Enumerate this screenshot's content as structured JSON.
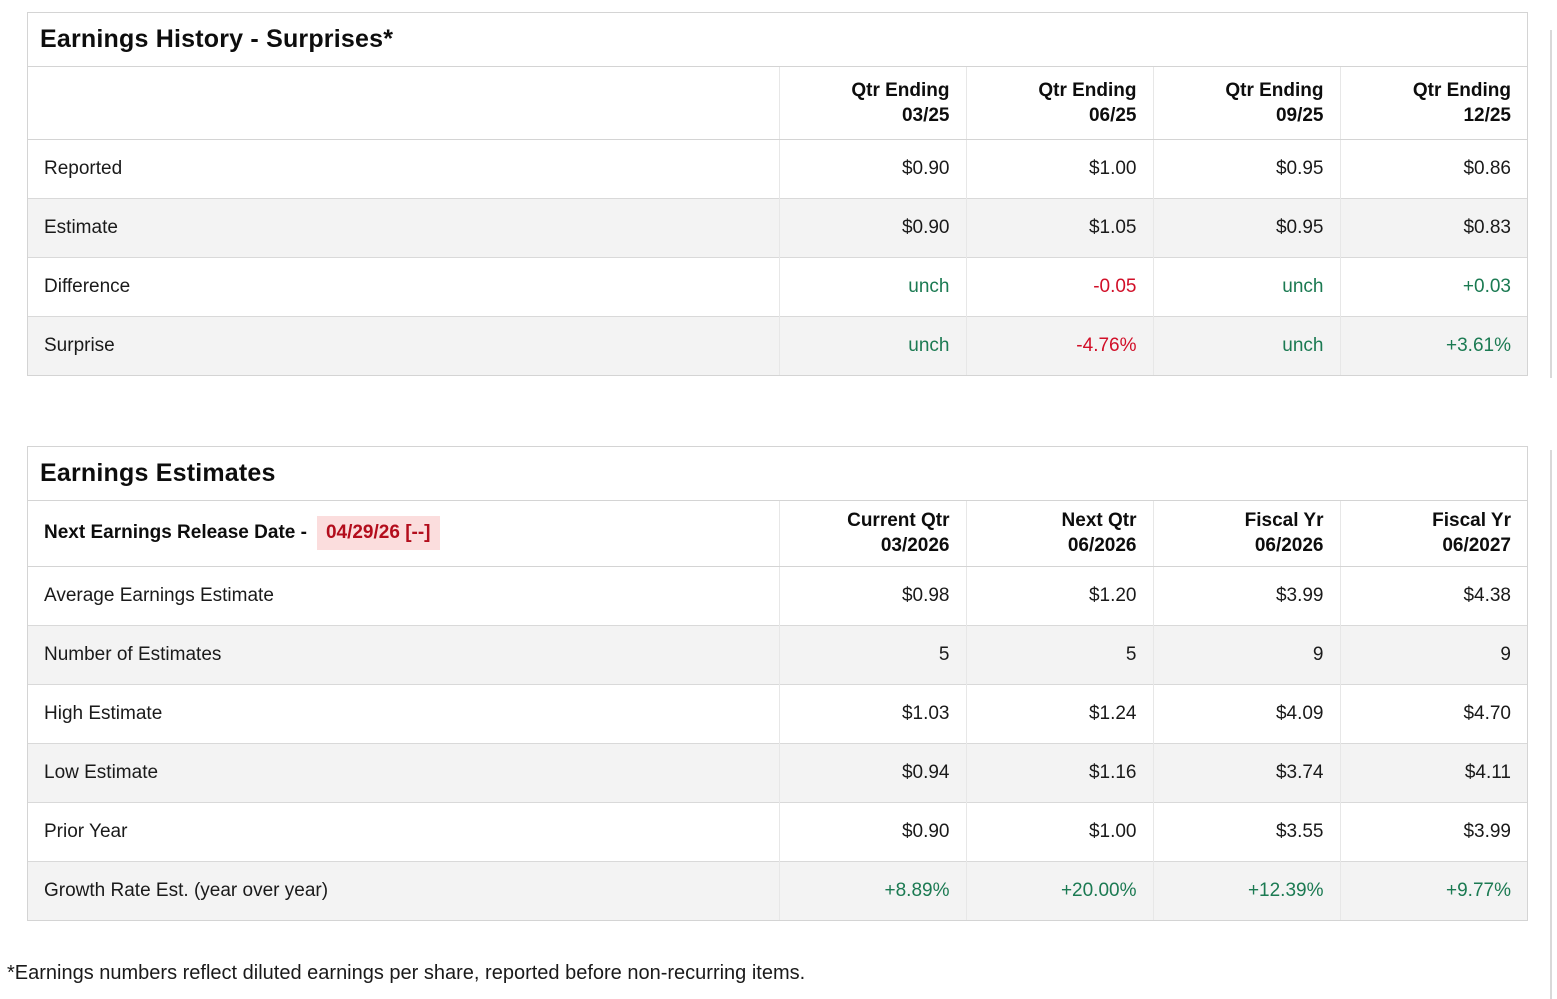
{
  "colors": {
    "positive_green": "#1b7a52",
    "negative_red": "#d10f28",
    "release_date_text": "#b30d1c",
    "release_date_bg": "#fbdddd",
    "row_stripe": "#f3f3f3",
    "border": "#d4d4d4"
  },
  "earnings_history": {
    "title": "Earnings History - Surprises*",
    "columns": [
      {
        "line1": "Qtr Ending",
        "line2": "03/25"
      },
      {
        "line1": "Qtr Ending",
        "line2": "06/25"
      },
      {
        "line1": "Qtr Ending",
        "line2": "09/25"
      },
      {
        "line1": "Qtr Ending",
        "line2": "12/25"
      }
    ],
    "rows": [
      {
        "label": "Reported",
        "values": [
          {
            "text": "$0.90"
          },
          {
            "text": "$1.00"
          },
          {
            "text": "$0.95"
          },
          {
            "text": "$0.86"
          }
        ]
      },
      {
        "label": "Estimate",
        "values": [
          {
            "text": "$0.90"
          },
          {
            "text": "$1.05"
          },
          {
            "text": "$0.95"
          },
          {
            "text": "$0.83"
          }
        ]
      },
      {
        "label": "Difference",
        "values": [
          {
            "text": "unch",
            "tone": "green"
          },
          {
            "text": "-0.05",
            "tone": "red"
          },
          {
            "text": "unch",
            "tone": "green"
          },
          {
            "text": "+0.03",
            "tone": "green"
          }
        ]
      },
      {
        "label": "Surprise",
        "values": [
          {
            "text": "unch",
            "tone": "green"
          },
          {
            "text": "-4.76%",
            "tone": "red"
          },
          {
            "text": "unch",
            "tone": "green"
          },
          {
            "text": "+3.61%",
            "tone": "green"
          }
        ]
      }
    ]
  },
  "earnings_estimates": {
    "title": "Earnings Estimates",
    "release_label": "Next Earnings Release Date -",
    "release_date": "04/29/26 [--]",
    "columns": [
      {
        "line1": "Current Qtr",
        "line2": "03/2026"
      },
      {
        "line1": "Next Qtr",
        "line2": "06/2026"
      },
      {
        "line1": "Fiscal Yr",
        "line2": "06/2026"
      },
      {
        "line1": "Fiscal Yr",
        "line2": "06/2027"
      }
    ],
    "rows": [
      {
        "label": "Average Earnings Estimate",
        "values": [
          {
            "text": "$0.98"
          },
          {
            "text": "$1.20"
          },
          {
            "text": "$3.99"
          },
          {
            "text": "$4.38"
          }
        ]
      },
      {
        "label": "Number of Estimates",
        "values": [
          {
            "text": "5"
          },
          {
            "text": "5"
          },
          {
            "text": "9"
          },
          {
            "text": "9"
          }
        ]
      },
      {
        "label": "High Estimate",
        "values": [
          {
            "text": "$1.03"
          },
          {
            "text": "$1.24"
          },
          {
            "text": "$4.09"
          },
          {
            "text": "$4.70"
          }
        ]
      },
      {
        "label": "Low Estimate",
        "values": [
          {
            "text": "$0.94"
          },
          {
            "text": "$1.16"
          },
          {
            "text": "$3.74"
          },
          {
            "text": "$4.11"
          }
        ]
      },
      {
        "label": "Prior Year",
        "values": [
          {
            "text": "$0.90"
          },
          {
            "text": "$1.00"
          },
          {
            "text": "$3.55"
          },
          {
            "text": "$3.99"
          }
        ]
      },
      {
        "label": "Growth Rate Est. (year over year)",
        "values": [
          {
            "text": "+8.89%",
            "tone": "green"
          },
          {
            "text": "+20.00%",
            "tone": "green"
          },
          {
            "text": "+12.39%",
            "tone": "green"
          },
          {
            "text": "+9.77%",
            "tone": "green"
          }
        ]
      }
    ]
  },
  "footnote": "*Earnings numbers reflect diluted earnings per share, reported before non-recurring items."
}
